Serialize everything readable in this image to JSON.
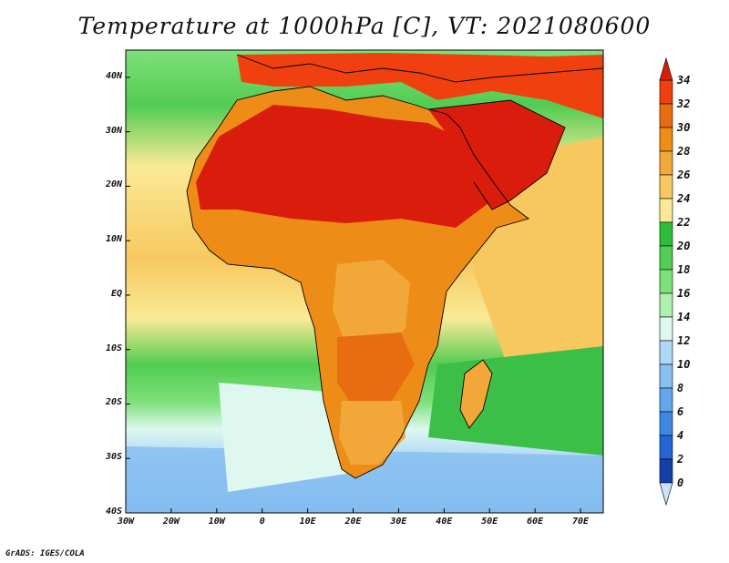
{
  "title": "Temperature at 1000hPa [C], VT: 2021080600",
  "credit": "GrADS: IGES/COLA",
  "map": {
    "projection": "lat-lon",
    "lon_range": [
      -30,
      75
    ],
    "lat_range": [
      -40,
      45
    ],
    "lon_ticks": [
      -30,
      -20,
      -10,
      0,
      10,
      20,
      30,
      40,
      50,
      60,
      70
    ],
    "lat_ticks": [
      40,
      30,
      20,
      10,
      0,
      -10,
      -20,
      -30,
      -40
    ],
    "lon_tick_labels": [
      "30W",
      "20W",
      "10W",
      "0",
      "10E",
      "20E",
      "30E",
      "40E",
      "50E",
      "60E",
      "70E"
    ],
    "lat_tick_labels": [
      "40N",
      "30N",
      "20N",
      "10N",
      "EQ",
      "10S",
      "20S",
      "30S",
      "40S"
    ]
  },
  "colorbar": {
    "levels": [
      "34",
      "32",
      "30",
      "28",
      "26",
      "24",
      "22",
      "20",
      "18",
      "16",
      "14",
      "12",
      "10",
      "8",
      "6",
      "4",
      "2",
      "0"
    ],
    "colors": [
      "#f04010",
      "#e86c10",
      "#ee8c18",
      "#f2a838",
      "#f8c860",
      "#faea96",
      "#2ebe3c",
      "#52cc52",
      "#7ee07a",
      "#aef0b0",
      "#def8f0",
      "#aed8f6",
      "#88c0f0",
      "#64a6ec",
      "#3e88e4",
      "#2466d4",
      "#1440a8",
      "#0e1a78"
    ],
    "top_color": "#d81e0a",
    "bottom_color": "#cce0ff"
  },
  "colors": {
    "ocean_cool": "#3bbf47",
    "ocean_warm": "#f7c25c",
    "land_hot": "#d91c0c"
  }
}
